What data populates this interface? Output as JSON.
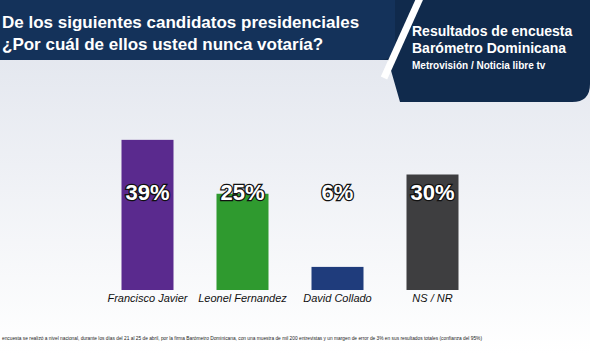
{
  "chart_data": {
    "type": "bar",
    "title": "De los siguientes candidatos presidenciales",
    "subtitle": "¿Por cuál de ellos usted nunca votaría?",
    "annotations": [
      "Resultados de encuesta",
      "Barómetro Dominicana",
      "Metrovisión / Noticia libre tv",
      "encuesta se realizó a nivel nacional, durante los días del 21 al 25 de abril, por la firma Barómetro Dominicana, con una muestra de mil 200 entrevistas y un margen de error de 3% en sus resultados totales (confianza del 95%)"
    ],
    "categories": [
      "Francisco Javier",
      "Leonel Fernandez",
      "David Collado",
      "NS / NR"
    ],
    "values": [
      39,
      25,
      6,
      30
    ],
    "value_labels": [
      "39%",
      "25%",
      "6%",
      "30%"
    ],
    "colors": [
      "#5a2a8e",
      "#2f9a2f",
      "#1f3c7c",
      "#3e3e40"
    ],
    "ylim": [
      0,
      40
    ],
    "data_labels": true,
    "tick_labels": "x",
    "grid": false
  }
}
